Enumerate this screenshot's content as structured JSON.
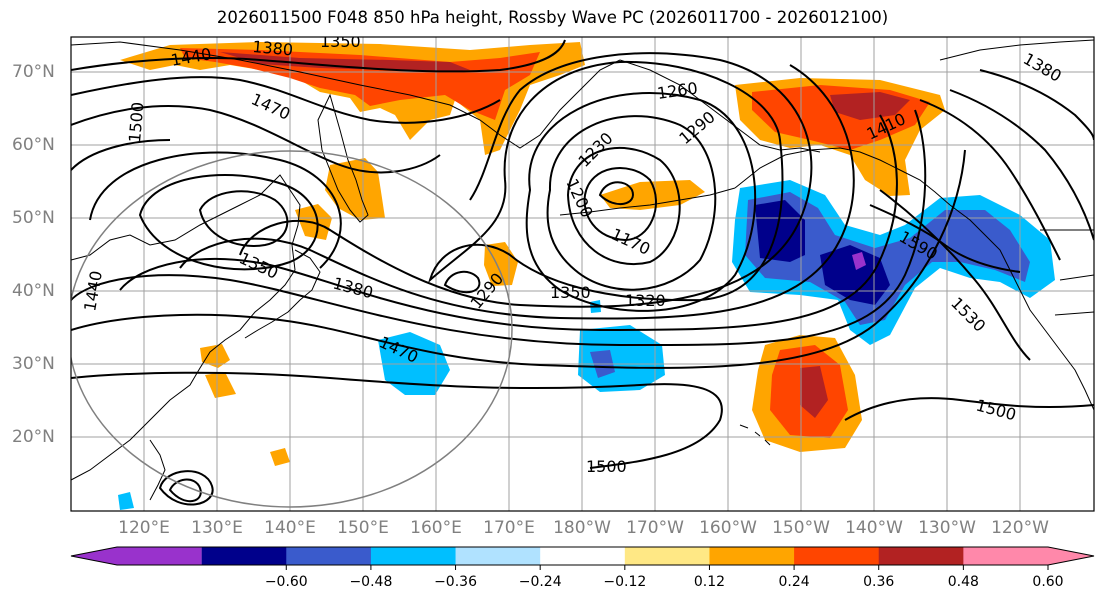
{
  "title": "2026011500 F048 850 hPa height, Rossby Wave PC (2026011700 - 2026012100)",
  "lat_labels": [
    "70°N",
    "60°N",
    "50°N",
    "40°N",
    "30°N",
    "20°N"
  ],
  "lon_labels": [
    "120°E",
    "130°E",
    "140°E",
    "150°E",
    "160°E",
    "170°E",
    "180°W",
    "170°W",
    "160°W",
    "150°W",
    "140°W",
    "130°W",
    "120°W"
  ],
  "colorbar": {
    "ticks": [
      "−0.60",
      "−0.48",
      "−0.36",
      "−0.24",
      "−0.12",
      "0.12",
      "0.24",
      "0.36",
      "0.48",
      "0.60"
    ],
    "colors": {
      "under": "#9932cc",
      "bins": [
        "#9932cc",
        "#00008b",
        "#3a5bcc",
        "#00bfff",
        "#b0e2ff",
        "#ffffff",
        "#ffe885",
        "#ffa500",
        "#ff4500",
        "#b22222",
        "#ff88aa"
      ],
      "over": "#ff88aa"
    }
  },
  "contour_labels": [
    "1380",
    "1350",
    "1440",
    "1470",
    "1500",
    "1260",
    "1290",
    "1230",
    "1200",
    "1170",
    "1410",
    "1590",
    "1380",
    "1350",
    "1440",
    "1290",
    "1350",
    "1320",
    "1470",
    "1530",
    "1500",
    "1500",
    "1380"
  ],
  "map_data": {
    "extent": {
      "lon_min": 110,
      "lon_max": 250,
      "lat_min": 10,
      "lat_max": 75
    },
    "variable": "850 hPa geopotential height (m) with Rossby wave PC shading"
  }
}
